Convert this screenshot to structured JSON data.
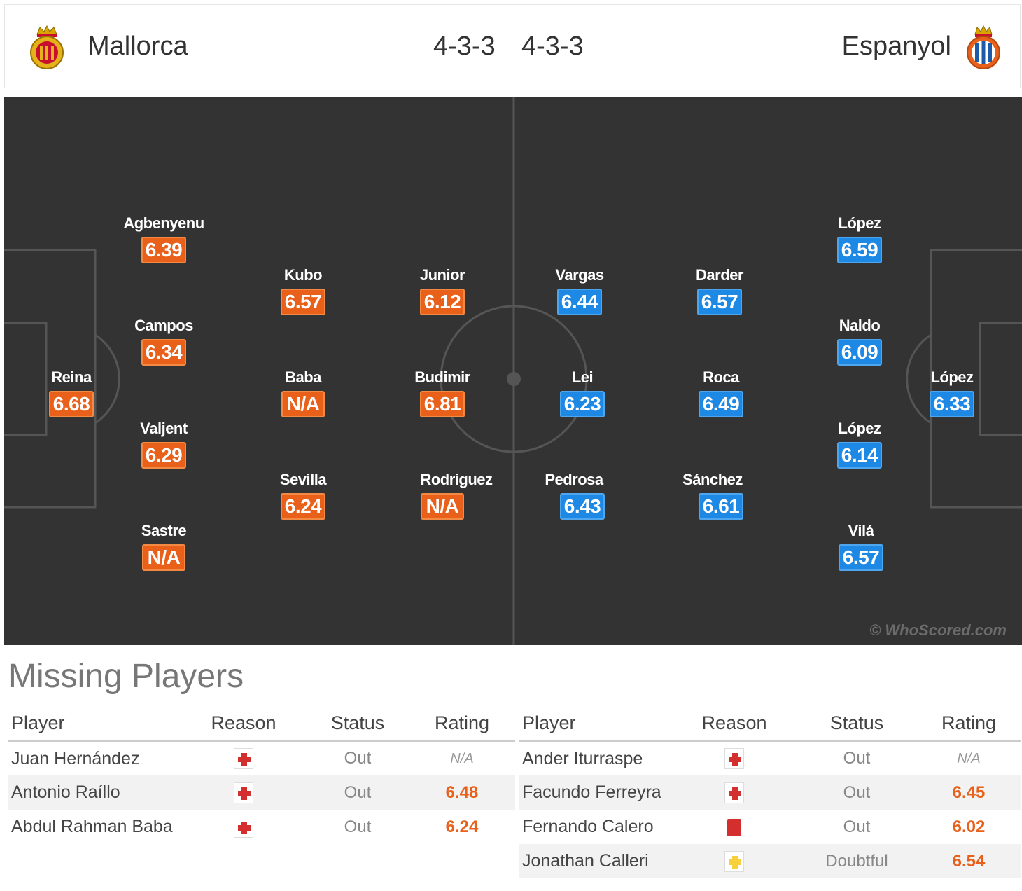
{
  "header": {
    "home_team": "Mallorca",
    "away_team": "Espanyol",
    "home_formation": "4-3-3",
    "away_formation": "4-3-3",
    "home_crest_icon": "mallorca-crest-icon",
    "away_crest_icon": "espanyol-crest-icon"
  },
  "colors": {
    "home_rating": "#e8601a",
    "away_rating": "#1e88e5",
    "pitch": "#333333"
  },
  "pitch": {
    "watermark": "© WhoScored.com",
    "home_players": [
      {
        "name": "Reina",
        "rating": "6.68"
      },
      {
        "name": "Agbenyenu",
        "rating": "6.39"
      },
      {
        "name": "Campos",
        "rating": "6.34"
      },
      {
        "name": "Valjent",
        "rating": "6.29"
      },
      {
        "name": "Sastre",
        "rating": "N/A"
      },
      {
        "name": "Kubo",
        "rating": "6.57"
      },
      {
        "name": "Baba",
        "rating": "N/A"
      },
      {
        "name": "Sevilla",
        "rating": "6.24"
      },
      {
        "name": "Junior",
        "rating": "6.12"
      },
      {
        "name": "Budimir",
        "rating": "6.81"
      },
      {
        "name": "Rodriguez",
        "rating": "N/A"
      }
    ],
    "away_players": [
      {
        "name": "Vargas",
        "rating": "6.44"
      },
      {
        "name": "Lei",
        "rating": "6.23"
      },
      {
        "name": "Pedrosa",
        "rating": "6.43"
      },
      {
        "name": "Darder",
        "rating": "6.57"
      },
      {
        "name": "Roca",
        "rating": "6.49"
      },
      {
        "name": "Sánchez",
        "rating": "6.61"
      },
      {
        "name": "López",
        "rating": "6.59"
      },
      {
        "name": "Naldo",
        "rating": "6.09"
      },
      {
        "name": "López",
        "rating": "6.14"
      },
      {
        "name": "Vilá",
        "rating": "6.57"
      },
      {
        "name": "López",
        "rating": "6.33"
      }
    ]
  },
  "missing": {
    "title": "Missing Players",
    "columns": {
      "player": "Player",
      "reason": "Reason",
      "status": "Status",
      "rating": "Rating"
    },
    "home": [
      {
        "player": "Juan Hernández",
        "reason": "injury-cross-icon",
        "status": "Out",
        "rating": "N/A"
      },
      {
        "player": "Antonio Raíllo",
        "reason": "injury-cross-icon",
        "status": "Out",
        "rating": "6.48"
      },
      {
        "player": "Abdul Rahman Baba",
        "reason": "injury-cross-icon",
        "status": "Out",
        "rating": "6.24"
      }
    ],
    "away": [
      {
        "player": "Ander Iturraspe",
        "reason": "injury-cross-icon",
        "status": "Out",
        "rating": "N/A"
      },
      {
        "player": "Facundo Ferreyra",
        "reason": "injury-cross-icon",
        "status": "Out",
        "rating": "6.45"
      },
      {
        "player": "Fernando Calero",
        "reason": "red-card-icon",
        "status": "Out",
        "rating": "6.02"
      },
      {
        "player": "Jonathan Calleri",
        "reason": "doubtful-cross-icon",
        "status": "Doubtful",
        "rating": "6.54"
      }
    ]
  }
}
